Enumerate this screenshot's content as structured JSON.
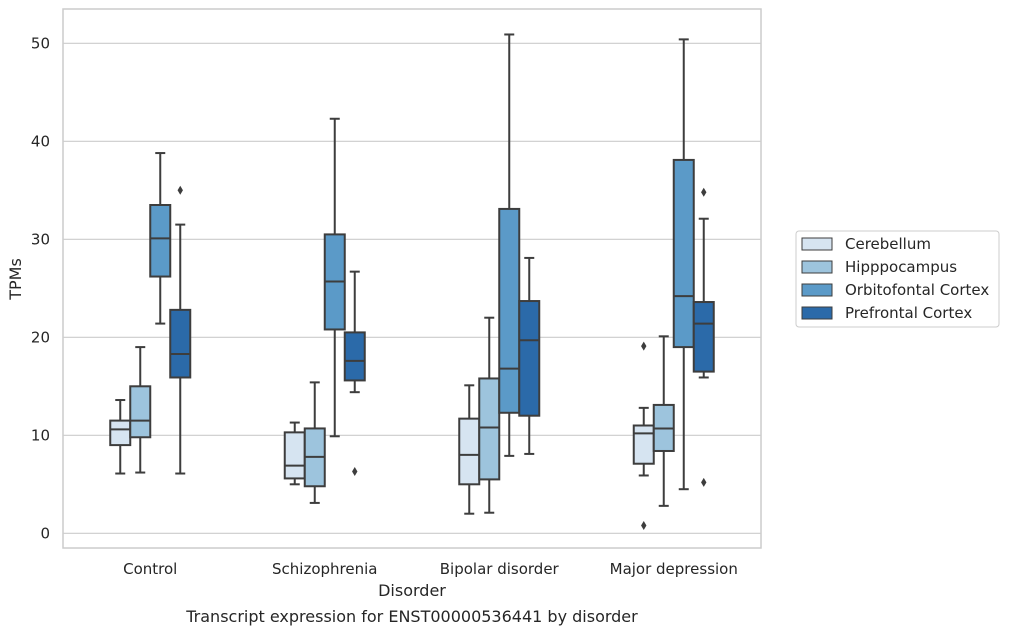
{
  "chart_data": {
    "type": "box",
    "caption": "Transcript expression for ENST00000536441 by disorder",
    "xlabel": "Disorder",
    "ylabel": "TPMs",
    "ylim": [
      -1.5,
      53.5
    ],
    "yticks": [
      0,
      10,
      20,
      30,
      40,
      50
    ],
    "grid": "horizontal",
    "legend_position": "right",
    "categories": [
      "Control",
      "Schizophrenia",
      "Bipolar disorder",
      "Major depression"
    ],
    "series": [
      {
        "name": "Cerebellum",
        "color": "#d6e4f1",
        "boxes": [
          {
            "whislo": 6.1,
            "q1": 9.0,
            "med": 10.6,
            "q3": 11.5,
            "whishi": 13.6,
            "fliers": []
          },
          {
            "whislo": 5.0,
            "q1": 5.6,
            "med": 6.9,
            "q3": 10.3,
            "whishi": 11.3,
            "fliers": []
          },
          {
            "whislo": 2.0,
            "q1": 5.0,
            "med": 8.0,
            "q3": 11.7,
            "whishi": 15.1,
            "fliers": []
          },
          {
            "whislo": 5.9,
            "q1": 7.1,
            "med": 10.2,
            "q3": 11.0,
            "whishi": 12.8,
            "fliers": [
              19.1,
              0.8
            ]
          }
        ]
      },
      {
        "name": "Hipppocampus",
        "color": "#9dc4dd",
        "boxes": [
          {
            "whislo": 6.2,
            "q1": 9.8,
            "med": 11.5,
            "q3": 15.0,
            "whishi": 19.0,
            "fliers": []
          },
          {
            "whislo": 3.1,
            "q1": 4.8,
            "med": 7.8,
            "q3": 10.7,
            "whishi": 15.4,
            "fliers": []
          },
          {
            "whislo": 2.1,
            "q1": 5.5,
            "med": 10.8,
            "q3": 15.8,
            "whishi": 22.0,
            "fliers": []
          },
          {
            "whislo": 2.8,
            "q1": 8.4,
            "med": 10.7,
            "q3": 13.1,
            "whishi": 20.1,
            "fliers": []
          }
        ]
      },
      {
        "name": "Orbitofontal Cortex",
        "color": "#5b9ac8",
        "boxes": [
          {
            "whislo": 21.4,
            "q1": 26.2,
            "med": 30.1,
            "q3": 33.5,
            "whishi": 38.8,
            "fliers": []
          },
          {
            "whislo": 9.9,
            "q1": 20.8,
            "med": 25.7,
            "q3": 30.5,
            "whishi": 42.3,
            "fliers": []
          },
          {
            "whislo": 7.9,
            "q1": 12.3,
            "med": 16.8,
            "q3": 33.1,
            "whishi": 50.9,
            "fliers": []
          },
          {
            "whislo": 4.5,
            "q1": 19.0,
            "med": 24.2,
            "q3": 38.1,
            "whishi": 50.4,
            "fliers": []
          }
        ]
      },
      {
        "name": "Prefrontal Cortex",
        "color": "#2b6aa9",
        "boxes": [
          {
            "whislo": 6.1,
            "q1": 15.9,
            "med": 18.3,
            "q3": 22.8,
            "whishi": 31.5,
            "fliers": [
              35.0
            ]
          },
          {
            "whislo": 14.4,
            "q1": 15.6,
            "med": 17.6,
            "q3": 20.5,
            "whishi": 26.7,
            "fliers": [
              6.3
            ]
          },
          {
            "whislo": 8.1,
            "q1": 12.0,
            "med": 19.7,
            "q3": 23.7,
            "whishi": 28.1,
            "fliers": []
          },
          {
            "whislo": 15.9,
            "q1": 16.5,
            "med": 21.4,
            "q3": 23.6,
            "whishi": 32.1,
            "fliers": [
              34.8,
              5.2
            ]
          }
        ]
      }
    ]
  }
}
